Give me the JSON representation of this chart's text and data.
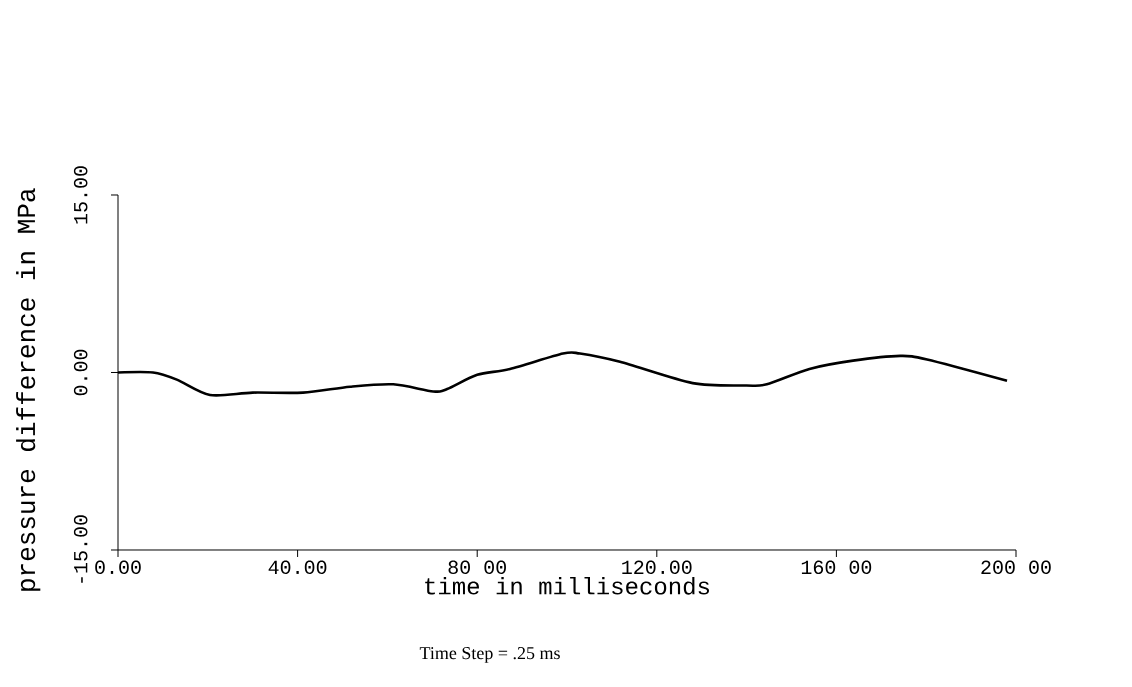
{
  "chart_data": {
    "type": "line",
    "xlabel": "time in milliseconds",
    "ylabel": "pressure difference in MPa",
    "annotations": [
      "Time Step = .25 ms"
    ],
    "x": [
      0,
      7.8,
      13.1,
      20.5,
      30,
      41.2,
      51.7,
      61.3,
      70.2,
      73.3,
      80,
      87.3,
      99.1,
      102.9,
      111.8,
      128,
      140,
      144.5,
      154,
      163.7,
      174.2,
      180.2,
      198
    ],
    "values": [
      0,
      0,
      -0.6,
      -1.9,
      -1.7,
      -1.7,
      -1.2,
      -1.0,
      -1.6,
      -1.4,
      -0.2,
      0.3,
      1.6,
      1.6,
      0.9,
      -0.9,
      -1.1,
      -1.0,
      0.3,
      1.0,
      1.4,
      1.1,
      -0.7
    ],
    "color": "#000000",
    "xlim": [
      0,
      200
    ],
    "ylim": [
      -15,
      15
    ],
    "xticks": [
      {
        "value": 0,
        "label": "0.00"
      },
      {
        "value": 40,
        "label": "40.00"
      },
      {
        "value": 80,
        "label": "80 00"
      },
      {
        "value": 120,
        "label": "120.00"
      },
      {
        "value": 160,
        "label": "160 00"
      },
      {
        "value": 200,
        "label": "200 00"
      }
    ],
    "yticks": [
      {
        "value": -15,
        "label": "-15.00"
      },
      {
        "value": 0,
        "label": "0.00"
      },
      {
        "value": 15,
        "label": "15.00"
      }
    ]
  }
}
